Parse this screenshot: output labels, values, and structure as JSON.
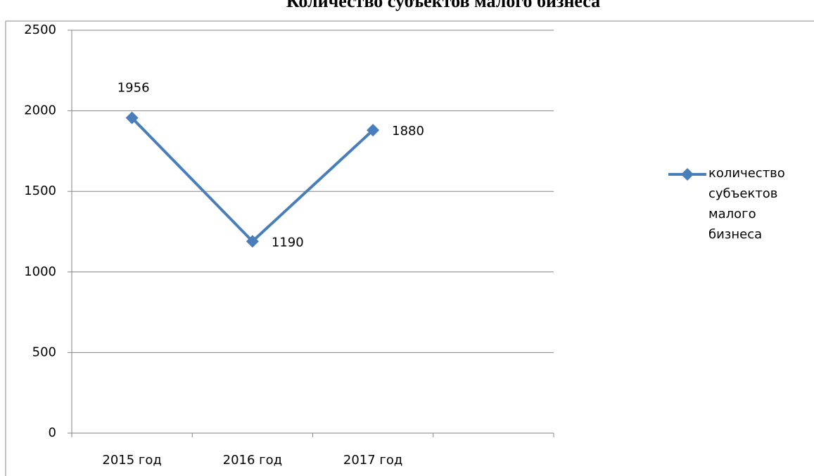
{
  "chart_data": {
    "type": "line",
    "title": "Количество субъектов малого бизнеса",
    "categories": [
      "2015 год",
      "2016 год",
      "2017 год",
      null
    ],
    "series": [
      {
        "name": "количество субъектов малого бизнеса",
        "color": "#4a7ebb",
        "values": [
          1956,
          1190,
          1880,
          null
        ]
      }
    ],
    "ylim": [
      0,
      2500
    ],
    "yticks": [
      0,
      500,
      1000,
      1500,
      2000,
      2500
    ],
    "grid": true,
    "legend": "right"
  }
}
